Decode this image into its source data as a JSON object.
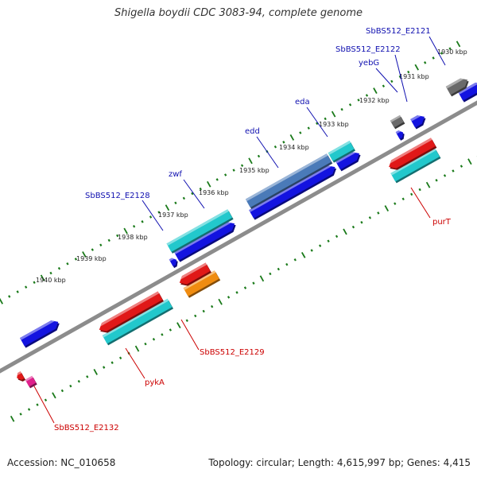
{
  "title": "Shigella boydii CDC 3083-94, complete genome",
  "footer": {
    "accession": "Accession: NC_010658",
    "summary": "Topology: circular; Length: 4,615,997 bp; Genes: 4,415"
  },
  "colors": {
    "background": "#ffffff",
    "backbone": "#8c8c8c",
    "tick": "#1a7a1a",
    "label_forward": "#1010b0",
    "label_reverse": "#cc0000",
    "gene_blue": "#1313e0",
    "gene_cyan": "#22c8cc",
    "gene_red": "#e01818",
    "gene_orange": "#f08c10",
    "gene_grey": "#6a6a6a",
    "gene_steel": "#4a7ab8",
    "gene_magenta": "#e0208c"
  },
  "scale": {
    "unit": "kbp",
    "labels": [
      "1930 kbp",
      "1931 kbp",
      "1932 kbp",
      "1933 kbp",
      "1934 kbp",
      "1935 kbp",
      "1936 kbp",
      "1937 kbp",
      "1938 kbp",
      "1939 kbp",
      "1940 kbp"
    ]
  },
  "features": {
    "forward_labeled": [
      {
        "name": "SbBS512_E2121",
        "icon": "blue-arrow"
      },
      {
        "name": "SbBS512_E2122",
        "icon": "grey-box"
      },
      {
        "name": "yebG",
        "icon": "blue-arrow"
      },
      {
        "name": "eda",
        "icon": "cyan-box"
      },
      {
        "name": "edd",
        "icon": "steel-box"
      },
      {
        "name": "zwf",
        "icon": "cyan-box"
      },
      {
        "name": "SbBS512_E2128",
        "icon": "blue-arrow"
      }
    ],
    "reverse_labeled": [
      {
        "name": "purT",
        "icon": "red-arrow"
      },
      {
        "name": "SbBS512_E2129",
        "icon": "orange-box"
      },
      {
        "name": "pykA",
        "icon": "cyan-box"
      },
      {
        "name": "SbBS512_E2132",
        "icon": "magenta-box"
      }
    ]
  }
}
